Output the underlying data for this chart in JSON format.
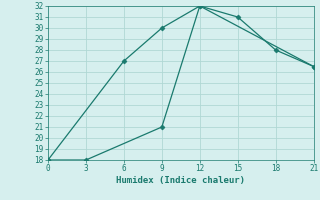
{
  "line1_x": [
    0,
    6,
    9,
    12,
    15,
    18,
    21
  ],
  "line1_y": [
    18,
    27,
    30,
    32,
    31,
    28,
    26.5
  ],
  "line2_x": [
    0,
    3,
    9,
    12,
    21
  ],
  "line2_y": [
    18,
    18,
    21,
    32,
    26.5
  ],
  "xlabel": "Humidex (Indice chaleur)",
  "xlim": [
    0,
    21
  ],
  "ylim": [
    18,
    32
  ],
  "xticks": [
    0,
    3,
    6,
    9,
    12,
    15,
    18,
    21
  ],
  "yticks": [
    18,
    19,
    20,
    21,
    22,
    23,
    24,
    25,
    26,
    27,
    28,
    29,
    30,
    31,
    32
  ],
  "line_color": "#1a7a6e",
  "bg_color": "#d6efee",
  "grid_color": "#b0d8d4",
  "marker": "D",
  "marker_size": 2.5,
  "linewidth": 0.9,
  "tick_fontsize": 5.5,
  "xlabel_fontsize": 6.5
}
